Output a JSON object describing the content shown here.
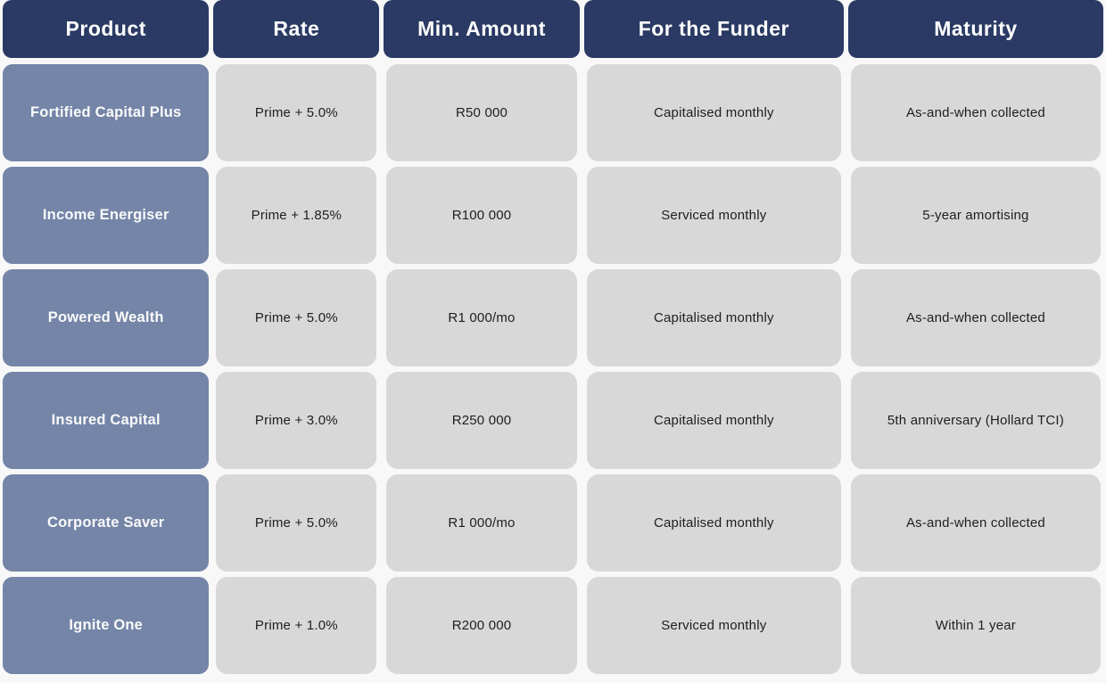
{
  "chart_data": {
    "type": "table",
    "columns": [
      "Product",
      "Rate",
      "Min. Amount",
      "For the Funder",
      "Maturity"
    ],
    "rows": [
      [
        "Fortified Capital Plus",
        "Prime + 5.0%",
        "R50 000",
        "Capitalised monthly",
        "As-and-when collected"
      ],
      [
        "Income Energiser",
        "Prime + 1.85%",
        "R100 000",
        "Serviced monthly",
        "5-year amortising"
      ],
      [
        "Powered Wealth",
        "Prime + 5.0%",
        "R1 000/mo",
        "Capitalised monthly",
        "As-and-when collected"
      ],
      [
        "Insured Capital",
        "Prime + 3.0%",
        "R250 000",
        "Capitalised monthly",
        "5th anniversary (Hollard TCI)"
      ],
      [
        "Corporate Saver",
        "Prime + 5.0%",
        "R1 000/mo",
        "Capitalised monthly",
        "As-and-when collected"
      ],
      [
        "Ignite One",
        "Prime + 1.0%",
        "R200 000",
        "Serviced monthly",
        "Within 1 year"
      ]
    ]
  },
  "colors": {
    "page_bg": "#f8f8f8",
    "header_bg": "#2b3a64",
    "header_text": "#ffffff",
    "product_bg": "#7485a8",
    "product_text": "#fafafa",
    "cell_bg": "#d8d8d8",
    "cell_text": "#1e1e1e"
  }
}
